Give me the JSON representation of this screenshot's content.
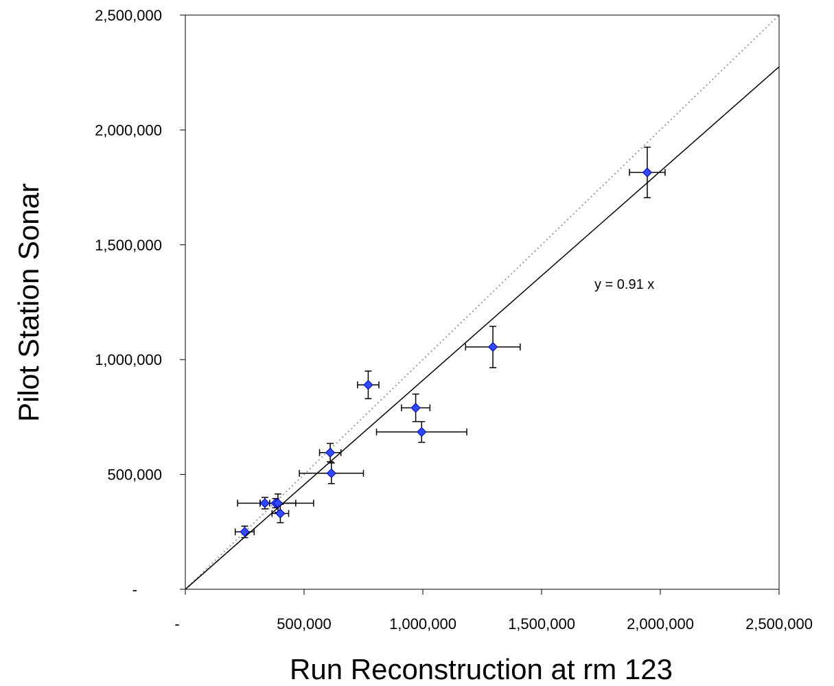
{
  "chart_data": {
    "type": "scatter",
    "xlabel": "Run Reconstruction at rm 123",
    "ylabel": "Pilot Station Sonar",
    "xlim": [
      0,
      2500000
    ],
    "ylim": [
      0,
      2500000
    ],
    "x_ticks": [
      0,
      500000,
      1000000,
      1500000,
      2000000,
      2500000
    ],
    "x_tick_labels": [
      "-",
      "500,000",
      "1,000,000",
      "1,500,000",
      "2,000,000",
      "2,500,000"
    ],
    "y_ticks": [
      0,
      500000,
      1000000,
      1500000,
      2000000,
      2500000
    ],
    "y_tick_labels": [
      "-",
      "500,000",
      "1,000,000",
      "1,500,000",
      "2,000,000",
      "2,500,000"
    ],
    "grid": false,
    "points": [
      {
        "x": 250000,
        "y": 250000,
        "xerr": 40000,
        "yerr": 25000
      },
      {
        "x": 335000,
        "y": 375000,
        "xerr": 20000,
        "yerr": 25000
      },
      {
        "x": 380000,
        "y": 375000,
        "xerr": 160000,
        "yerr": 20000
      },
      {
        "x": 390000,
        "y": 375000,
        "xerr": 75000,
        "yerr": 40000
      },
      {
        "x": 400000,
        "y": 330000,
        "xerr": 35000,
        "yerr": 40000
      },
      {
        "x": 610000,
        "y": 595000,
        "xerr": 45000,
        "yerr": 40000
      },
      {
        "x": 615000,
        "y": 505000,
        "xerr": 135000,
        "yerr": 45000
      },
      {
        "x": 770000,
        "y": 890000,
        "xerr": 45000,
        "yerr": 60000
      },
      {
        "x": 970000,
        "y": 790000,
        "xerr": 60000,
        "yerr": 60000
      },
      {
        "x": 995000,
        "y": 685000,
        "xerr": 190000,
        "yerr": 45000
      },
      {
        "x": 1295000,
        "y": 1055000,
        "xerr": 115000,
        "yerr": 90000
      },
      {
        "x": 1945000,
        "y": 1815000,
        "xerr": 75000,
        "yerr": 110000
      }
    ],
    "fit_line": {
      "slope": 0.91,
      "label": "y = 0.91 x"
    },
    "reference_line": {
      "slope": 1.0
    },
    "colors": {
      "marker": "#2f4bff",
      "marker_edge": "#0000aa",
      "fit": "#000000",
      "reference": "#999999"
    }
  }
}
